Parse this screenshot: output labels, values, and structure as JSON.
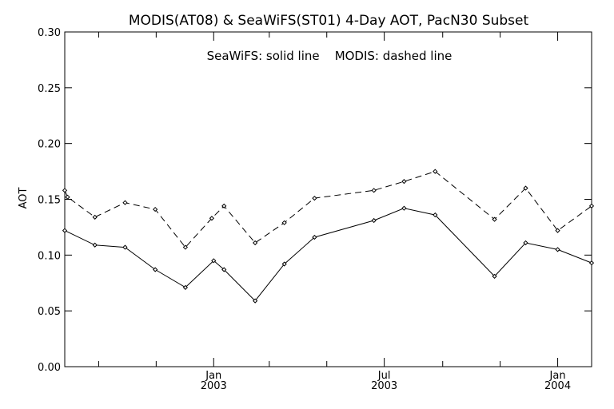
{
  "chart_data": {
    "type": "line",
    "title": "MODIS(AT08) & SeaWiFS(ST01) 4-Day AOT, PacN30 Subset",
    "annotation": "SeaWiFS: solid line    MODIS: dashed line",
    "xlabel": "",
    "ylabel": "AOT",
    "xlim": [
      "2002-07-27",
      "2004-02-06"
    ],
    "ylim": [
      0.0,
      0.3
    ],
    "yticks": [
      "0.00",
      "0.05",
      "0.10",
      "0.15",
      "0.20",
      "0.25",
      "0.30"
    ],
    "xticks_minor": [
      "2002-09-01",
      "2002-11-01",
      "2003-03-01",
      "2003-05-01",
      "2003-09-01",
      "2003-11-01"
    ],
    "xticks_major": [
      {
        "date": "2003-01-01",
        "month": "Jan",
        "year": "2003"
      },
      {
        "date": "2003-07-01",
        "month": "Jul",
        "year": "2003"
      },
      {
        "date": "2004-01-01",
        "month": "Jan",
        "year": "2004"
      }
    ],
    "grid": false,
    "series": [
      {
        "name": "SeaWiFS",
        "style": "solid",
        "color": "#000000",
        "points": [
          [
            "2002-07-27",
            0.122
          ],
          [
            "2002-08-28",
            0.109
          ],
          [
            "2002-09-29",
            0.107
          ],
          [
            "2002-10-31",
            0.087
          ],
          [
            "2002-12-02",
            0.071
          ],
          [
            "2003-01-01",
            0.095
          ],
          [
            "2003-01-12",
            0.087
          ],
          [
            "2003-02-14",
            0.059
          ],
          [
            "2003-03-17",
            0.092
          ],
          [
            "2003-04-18",
            0.116
          ],
          [
            "2003-06-20",
            0.131
          ],
          [
            "2003-07-22",
            0.142
          ],
          [
            "2003-08-24",
            0.136
          ],
          [
            "2003-10-26",
            0.081
          ],
          [
            "2003-11-28",
            0.111
          ],
          [
            "2004-01-01",
            0.105
          ],
          [
            "2004-02-06",
            0.093
          ]
        ]
      },
      {
        "name": "MODIS",
        "style": "dashed",
        "color": "#000000",
        "points": [
          [
            "2002-07-27",
            0.158
          ],
          [
            "2002-07-30",
            0.152
          ],
          [
            "2002-08-28",
            0.134
          ],
          [
            "2002-09-29",
            0.147
          ],
          [
            "2002-10-31",
            0.141
          ],
          [
            "2002-12-02",
            0.107
          ],
          [
            "2002-12-30",
            0.133
          ],
          [
            "2003-01-12",
            0.144
          ],
          [
            "2003-02-14",
            0.111
          ],
          [
            "2003-03-17",
            0.129
          ],
          [
            "2003-04-18",
            0.151
          ],
          [
            "2003-06-20",
            0.158
          ],
          [
            "2003-07-22",
            0.166
          ],
          [
            "2003-08-24",
            0.175
          ],
          [
            "2003-10-26",
            0.132
          ],
          [
            "2003-11-28",
            0.16
          ],
          [
            "2004-01-01",
            0.122
          ],
          [
            "2004-02-06",
            0.144
          ]
        ]
      }
    ]
  }
}
